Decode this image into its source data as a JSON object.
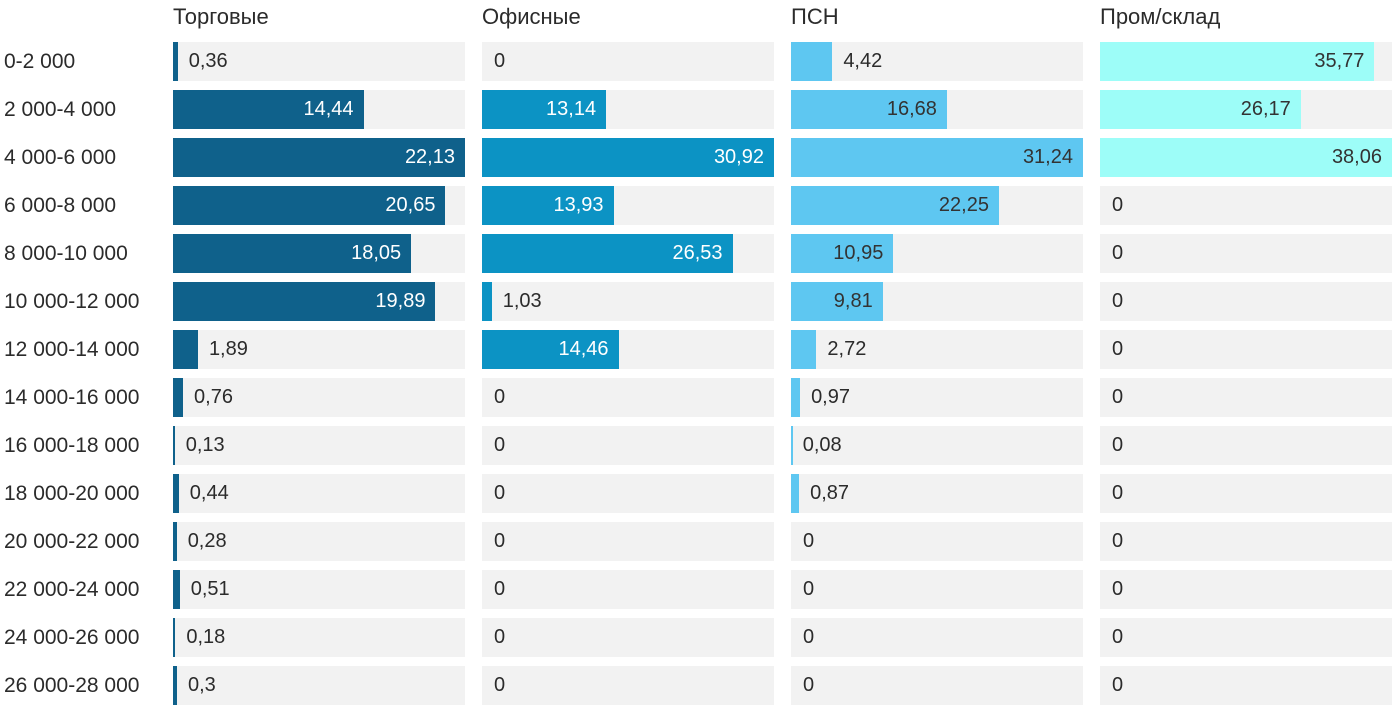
{
  "chart_data": {
    "type": "bar",
    "orientation": "horizontal",
    "layout": "small-multiples-columns",
    "scaling": "each column scaled to its own max value",
    "grid": false,
    "track_color": "#f2f2f2",
    "text_color": "#2b2b2b",
    "categories": [
      "0-2 000",
      "2 000-4 000",
      "4 000-6 000",
      "6 000-8 000",
      "8 000-10 000",
      "10 000-12 000",
      "12 000-14 000",
      "14 000-16 000",
      "16 000-18 000",
      "18 000-20 000",
      "20 000-22 000",
      "22 000-24 000",
      "24 000-26 000",
      "26 000-28 000"
    ],
    "series": [
      {
        "name": "Торговые",
        "color": "#0f618b",
        "label_color_inside": "#ffffff",
        "values": [
          0.36,
          14.44,
          22.13,
          20.65,
          18.05,
          19.89,
          1.89,
          0.76,
          0.13,
          0.44,
          0.28,
          0.51,
          0.18,
          0.3
        ],
        "labels": [
          "0,36",
          "14,44",
          "22,13",
          "20,65",
          "18,05",
          "19,89",
          "1,89",
          "0,76",
          "0,13",
          "0,44",
          "0,28",
          "0,51",
          "0,18",
          "0,3"
        ]
      },
      {
        "name": "Офисные",
        "color": "#0c93c4",
        "label_color_inside": "#ffffff",
        "values": [
          0,
          13.14,
          30.92,
          13.93,
          26.53,
          1.03,
          14.46,
          0,
          0,
          0,
          0,
          0,
          0,
          0
        ],
        "labels": [
          "0",
          "13,14",
          "30,92",
          "13,93",
          "26,53",
          "1,03",
          "14,46",
          "0",
          "0",
          "0",
          "0",
          "0",
          "0",
          "0"
        ]
      },
      {
        "name": "ПСН",
        "color": "#5ec7f1",
        "label_color_inside": "#333333",
        "values": [
          4.42,
          16.68,
          31.24,
          22.25,
          10.95,
          9.81,
          2.72,
          0.97,
          0.08,
          0.87,
          0,
          0,
          0,
          0
        ],
        "labels": [
          "4,42",
          "16,68",
          "31,24",
          "22,25",
          "10,95",
          "9,81",
          "2,72",
          "0,97",
          "0,08",
          "0,87",
          "0",
          "0",
          "0",
          "0"
        ]
      },
      {
        "name": "Пром/склад",
        "color": "#9dfdf8",
        "label_color_inside": "#333333",
        "values": [
          35.77,
          26.17,
          38.06,
          0,
          0,
          0,
          0,
          0,
          0,
          0,
          0,
          0,
          0,
          0
        ],
        "labels": [
          "35,77",
          "26,17",
          "38,06",
          "0",
          "0",
          "0",
          "0",
          "0",
          "0",
          "0",
          "0",
          "0",
          "0",
          "0"
        ]
      }
    ]
  }
}
